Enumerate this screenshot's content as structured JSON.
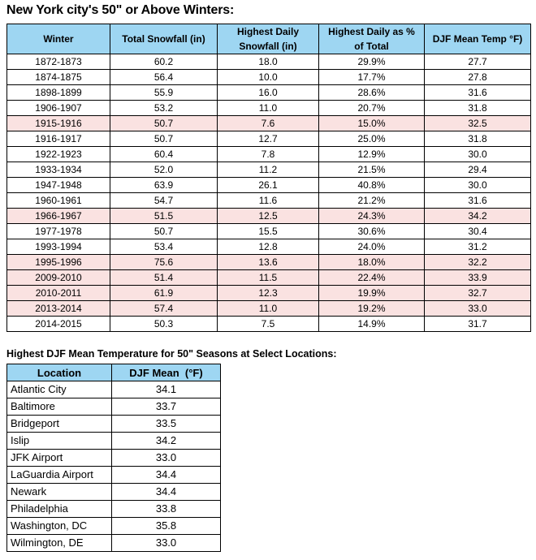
{
  "page": {
    "title": "New York city's 50\" or Above Winters:"
  },
  "winters_table": {
    "headers": [
      "Winter",
      "Total Snowfall (in)",
      "Highest Daily Snowfall (in)",
      "Highest Daily as % of Total",
      "DJF Mean Temp °F)"
    ],
    "rows": [
      {
        "values": [
          "1872-1873",
          "60.2",
          "18.0",
          "29.9%",
          "27.7"
        ],
        "highlight": false
      },
      {
        "values": [
          "1874-1875",
          "56.4",
          "10.0",
          "17.7%",
          "27.8"
        ],
        "highlight": false
      },
      {
        "values": [
          "1898-1899",
          "55.9",
          "16.0",
          "28.6%",
          "31.6"
        ],
        "highlight": false
      },
      {
        "values": [
          "1906-1907",
          "53.2",
          "11.0",
          "20.7%",
          "31.8"
        ],
        "highlight": false
      },
      {
        "values": [
          "1915-1916",
          "50.7",
          "7.6",
          "15.0%",
          "32.5"
        ],
        "highlight": true
      },
      {
        "values": [
          "1916-1917",
          "50.7",
          "12.7",
          "25.0%",
          "31.8"
        ],
        "highlight": false
      },
      {
        "values": [
          "1922-1923",
          "60.4",
          "7.8",
          "12.9%",
          "30.0"
        ],
        "highlight": false
      },
      {
        "values": [
          "1933-1934",
          "52.0",
          "11.2",
          "21.5%",
          "29.4"
        ],
        "highlight": false
      },
      {
        "values": [
          "1947-1948",
          "63.9",
          "26.1",
          "40.8%",
          "30.0"
        ],
        "highlight": false
      },
      {
        "values": [
          "1960-1961",
          "54.7",
          "11.6",
          "21.2%",
          "31.6"
        ],
        "highlight": false
      },
      {
        "values": [
          "1966-1967",
          "51.5",
          "12.5",
          "24.3%",
          "34.2"
        ],
        "highlight": true
      },
      {
        "values": [
          "1977-1978",
          "50.7",
          "15.5",
          "30.6%",
          "30.4"
        ],
        "highlight": false
      },
      {
        "values": [
          "1993-1994",
          "53.4",
          "12.8",
          "24.0%",
          "31.2"
        ],
        "highlight": false
      },
      {
        "values": [
          "1995-1996",
          "75.6",
          "13.6",
          "18.0%",
          "32.2"
        ],
        "highlight": true
      },
      {
        "values": [
          "2009-2010",
          "51.4",
          "11.5",
          "22.4%",
          "33.9"
        ],
        "highlight": true
      },
      {
        "values": [
          "2010-2011",
          "61.9",
          "12.3",
          "19.9%",
          "32.7"
        ],
        "highlight": true
      },
      {
        "values": [
          "2013-2014",
          "57.4",
          "11.0",
          "19.2%",
          "33.0"
        ],
        "highlight": true
      },
      {
        "values": [
          "2014-2015",
          "50.3",
          "7.5",
          "14.9%",
          "31.7"
        ],
        "highlight": false
      }
    ]
  },
  "locations_table": {
    "title": "Highest DJF Mean Temperature for 50\" Seasons at Select Locations:",
    "headers": [
      "Location",
      "DJF Mean  (°F)"
    ],
    "rows": [
      {
        "values": [
          "Atlantic City",
          "34.1"
        ],
        "highlight": false
      },
      {
        "values": [
          "Baltimore",
          "33.7"
        ],
        "highlight": false
      },
      {
        "values": [
          "Bridgeport",
          "33.5"
        ],
        "highlight": false
      },
      {
        "values": [
          "Islip",
          "34.2"
        ],
        "highlight": false
      },
      {
        "values": [
          "JFK Airport",
          "33.0"
        ],
        "highlight": false
      },
      {
        "values": [
          "LaGuardia Airport",
          "34.4"
        ],
        "highlight": false
      },
      {
        "values": [
          "Newark",
          "34.4"
        ],
        "highlight": false
      },
      {
        "values": [
          "Philadelphia",
          "33.8"
        ],
        "highlight": false
      },
      {
        "values": [
          "Washington, DC",
          "35.8"
        ],
        "highlight": false
      },
      {
        "values": [
          "Wilmington, DE",
          "33.0"
        ],
        "highlight": false
      }
    ]
  },
  "colors": {
    "header_fill": "#9ED6F2",
    "highlight_fill": "#FAE2E1",
    "border": "#000000",
    "text": "#000000",
    "background": "#FFFFFF"
  }
}
